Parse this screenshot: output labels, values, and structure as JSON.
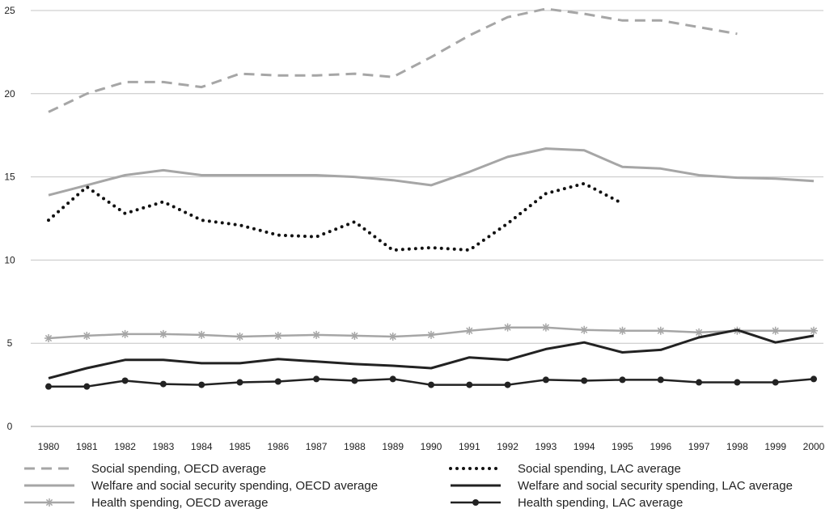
{
  "chart_data": {
    "type": "line",
    "title": "",
    "xlabel": "",
    "ylabel": "",
    "ylim": [
      0,
      25
    ],
    "yticks": [
      0,
      5,
      10,
      15,
      20,
      25
    ],
    "grid": "horizontal",
    "legend_position": "bottom",
    "categories": [
      "1980",
      "1981",
      "1982",
      "1983",
      "1984",
      "1985",
      "1986",
      "1987",
      "1988",
      "1989",
      "1990",
      "1991",
      "1992",
      "1993",
      "1994",
      "1995",
      "1996",
      "1997",
      "1998",
      "1999",
      "2000"
    ],
    "series": [
      {
        "name": "Social spending, OECD average",
        "style": "dashed",
        "color": "#a6a6a6",
        "values": [
          18.9,
          20.0,
          20.7,
          20.7,
          20.4,
          21.2,
          21.1,
          21.1,
          21.2,
          21.0,
          22.2,
          23.5,
          24.6,
          25.1,
          24.8,
          24.4,
          24.4,
          24.0,
          23.6,
          null,
          null
        ]
      },
      {
        "name": "Welfare and social security spending, OECD average",
        "style": "solid",
        "color": "#a6a6a6",
        "values": [
          13.9,
          14.5,
          15.1,
          15.4,
          15.1,
          15.1,
          15.1,
          15.1,
          15.0,
          14.8,
          14.5,
          15.3,
          16.2,
          16.7,
          16.6,
          15.6,
          15.5,
          15.1,
          14.95,
          14.9,
          14.75
        ]
      },
      {
        "name": "Health spending, OECD average",
        "style": "solid-star",
        "color": "#a6a6a6",
        "values": [
          5.3,
          5.45,
          5.55,
          5.55,
          5.5,
          5.4,
          5.45,
          5.5,
          5.45,
          5.4,
          5.5,
          5.75,
          5.95,
          5.95,
          5.8,
          5.75,
          5.75,
          5.65,
          5.75,
          5.75,
          5.75
        ]
      },
      {
        "name": "Social spending, LAC average",
        "style": "dotted",
        "color": "#111111",
        "values": [
          12.4,
          14.4,
          12.8,
          13.5,
          12.4,
          12.1,
          11.5,
          11.4,
          12.3,
          10.6,
          10.75,
          10.6,
          12.2,
          14.0,
          14.6,
          13.4,
          null,
          null,
          null,
          null,
          null
        ]
      },
      {
        "name": "Welfare and social security spending, LAC average",
        "style": "solid",
        "color": "#222222",
        "values": [
          2.9,
          3.5,
          4.0,
          4.0,
          3.8,
          3.8,
          4.05,
          3.9,
          3.75,
          3.65,
          3.5,
          4.15,
          4.0,
          4.65,
          5.05,
          4.45,
          4.6,
          5.35,
          5.8,
          5.05,
          5.45
        ]
      },
      {
        "name": "Health spending, LAC average",
        "style": "solid-dot",
        "color": "#222222",
        "values": [
          2.4,
          2.4,
          2.75,
          2.55,
          2.5,
          2.65,
          2.7,
          2.85,
          2.75,
          2.85,
          2.5,
          2.5,
          2.5,
          2.8,
          2.75,
          2.8,
          2.8,
          2.65,
          2.65,
          2.65,
          2.85
        ]
      }
    ]
  }
}
